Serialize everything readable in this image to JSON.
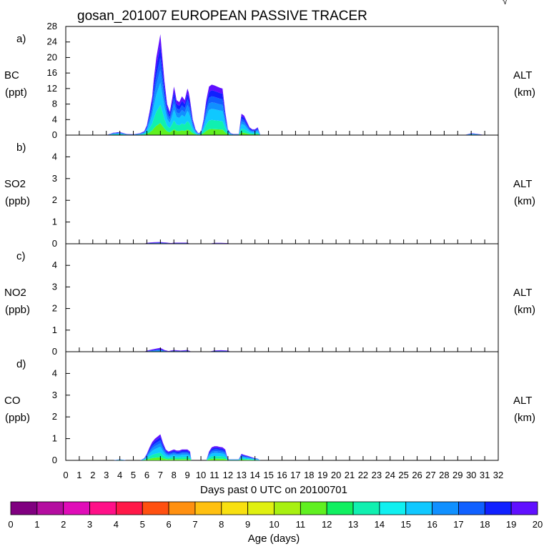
{
  "chart_data": {
    "type": "area",
    "title": "gosan_201007 EUROPEAN PASSIVE TRACER",
    "corner_mark": "√",
    "xlabel": "Days past 0 UTC on 20100701",
    "x_ticks": [
      "0",
      "1",
      "2",
      "3",
      "4",
      "5",
      "6",
      "7",
      "8",
      "9",
      "10",
      "11",
      "12",
      "13",
      "14",
      "15",
      "16",
      "17",
      "18",
      "19",
      "20",
      "21",
      "22",
      "23",
      "24",
      "25",
      "26",
      "27",
      "28",
      "29",
      "30",
      "31",
      "32"
    ],
    "xlim": [
      0,
      32
    ],
    "right_labels": {
      "top": "ALT",
      "bottom": "(km)"
    },
    "colorbar": {
      "label": "Age (days)",
      "ticks": [
        "0",
        "1",
        "2",
        "3",
        "4",
        "5",
        "6",
        "7",
        "8",
        "9",
        "10",
        "11",
        "12",
        "13",
        "14",
        "15",
        "16",
        "17",
        "18",
        "19",
        "20"
      ],
      "colors": [
        "#800080",
        "#b40da0",
        "#e00cb8",
        "#ff1088",
        "#ff1848",
        "#ff5010",
        "#ff9010",
        "#ffc010",
        "#f8e010",
        "#e0f010",
        "#a8f010",
        "#60f020",
        "#10f060",
        "#10f0b0",
        "#10f0f0",
        "#10c8ff",
        "#1090ff",
        "#1060ff",
        "#1020ff",
        "#6010ff"
      ]
    },
    "panels": [
      {
        "letter": "a)",
        "species": "BC",
        "unit": "(ppt)",
        "ylim": [
          0,
          28
        ],
        "y_ticks": [
          0,
          4,
          8,
          12,
          16,
          20,
          24,
          28
        ],
        "x": [
          3.0,
          3.5,
          4.0,
          4.5,
          5.0,
          5.5,
          5.8,
          6.0,
          6.2,
          6.4,
          6.5,
          6.6,
          6.7,
          6.8,
          6.9,
          7.0,
          7.1,
          7.2,
          7.3,
          7.5,
          7.7,
          7.9,
          8.0,
          8.1,
          8.2,
          8.4,
          8.6,
          8.8,
          9.0,
          9.1,
          9.2,
          9.4,
          9.6,
          9.8,
          10.0,
          10.2,
          10.4,
          10.6,
          10.8,
          11.0,
          11.2,
          11.4,
          11.6,
          11.8,
          12.0,
          12.2,
          12.4,
          12.8,
          13.0,
          13.2,
          13.4,
          13.6,
          13.8,
          14.0,
          14.2,
          14.4,
          29.5,
          30.0,
          30.5,
          31.0
        ],
        "values": [
          0,
          0.6,
          0.8,
          0.3,
          0.2,
          0.5,
          1.0,
          2.5,
          6.0,
          10.0,
          14.0,
          17.0,
          20.0,
          22.0,
          24.0,
          26.0,
          22.0,
          18.0,
          14.0,
          8.0,
          6.0,
          10.0,
          12.5,
          11.0,
          9.0,
          8.5,
          10.0,
          9.0,
          12.0,
          11.0,
          9.0,
          4.0,
          1.5,
          0.5,
          0.8,
          4.0,
          9.0,
          12.5,
          13.0,
          12.8,
          12.5,
          12.2,
          12.0,
          6.0,
          1.5,
          0.5,
          0.3,
          0.3,
          5.5,
          5.0,
          3.5,
          2.0,
          1.5,
          1.5,
          2.0,
          0,
          0,
          0.5,
          0.3,
          0
        ],
        "composition_by_age": [
          {
            "age_days": 11,
            "fraction": 0.12
          },
          {
            "age_days": 13,
            "fraction": 0.18
          },
          {
            "age_days": 15,
            "fraction": 0.22
          },
          {
            "age_days": 16,
            "fraction": 0.13
          },
          {
            "age_days": 17,
            "fraction": 0.12
          },
          {
            "age_days": 18,
            "fraction": 0.12
          },
          {
            "age_days": 19,
            "fraction": 0.11
          }
        ]
      },
      {
        "letter": "b)",
        "species": "SO2",
        "unit": "(ppb)",
        "ylim": [
          0,
          5
        ],
        "y_ticks": [
          0,
          1,
          2,
          3,
          4
        ],
        "x": [
          5.8,
          6.0,
          6.5,
          7.0,
          7.5,
          7.8,
          8.0,
          8.5,
          9.0,
          9.2,
          10.6,
          11.0,
          11.5,
          12.0,
          12.2
        ],
        "values": [
          0,
          0.04,
          0.07,
          0.08,
          0.05,
          0.03,
          0.05,
          0.05,
          0.05,
          0,
          0,
          0.04,
          0.04,
          0.03,
          0
        ],
        "composition_by_age": [
          {
            "age_days": 15,
            "fraction": 0.3
          },
          {
            "age_days": 17,
            "fraction": 0.3
          },
          {
            "age_days": 19,
            "fraction": 0.4
          }
        ]
      },
      {
        "letter": "c)",
        "species": "NO2",
        "unit": "(ppb)",
        "ylim": [
          0,
          5
        ],
        "y_ticks": [
          0,
          1,
          2,
          3,
          4
        ],
        "x": [
          5.8,
          6.0,
          6.5,
          7.0,
          7.3,
          7.6,
          8.0,
          8.5,
          9.0,
          9.3,
          10.6,
          11.0,
          11.5,
          12.0,
          12.2
        ],
        "values": [
          0,
          0.05,
          0.12,
          0.18,
          0.08,
          0.03,
          0.08,
          0.05,
          0.08,
          0,
          0,
          0.06,
          0.07,
          0.05,
          0
        ],
        "composition_by_age": [
          {
            "age_days": 15,
            "fraction": 0.3
          },
          {
            "age_days": 17,
            "fraction": 0.3
          },
          {
            "age_days": 19,
            "fraction": 0.4
          }
        ]
      },
      {
        "letter": "d)",
        "species": "CO",
        "unit": "(ppb)",
        "ylim": [
          0,
          5
        ],
        "y_ticks": [
          0,
          1,
          2,
          3,
          4
        ],
        "x": [
          3.5,
          4.0,
          4.5,
          5.5,
          5.8,
          6.0,
          6.2,
          6.4,
          6.6,
          6.8,
          7.0,
          7.2,
          7.4,
          7.6,
          7.8,
          8.0,
          8.2,
          8.4,
          8.6,
          8.8,
          9.0,
          9.2,
          9.3,
          10.4,
          10.6,
          10.8,
          11.0,
          11.2,
          11.4,
          11.6,
          11.8,
          12.0,
          12.8,
          13.0,
          13.2,
          13.5,
          14.0,
          14.2,
          14.4
        ],
        "values": [
          0,
          0.05,
          0,
          0,
          0.1,
          0.3,
          0.6,
          0.85,
          1.0,
          1.1,
          1.2,
          0.8,
          0.5,
          0.4,
          0.45,
          0.5,
          0.45,
          0.45,
          0.5,
          0.5,
          0.5,
          0.4,
          0,
          0,
          0.4,
          0.6,
          0.65,
          0.65,
          0.62,
          0.6,
          0.5,
          0.05,
          0.05,
          0.3,
          0.25,
          0.2,
          0.1,
          0.08,
          0
        ],
        "composition_by_age": [
          {
            "age_days": 11,
            "fraction": 0.12
          },
          {
            "age_days": 13,
            "fraction": 0.18
          },
          {
            "age_days": 15,
            "fraction": 0.22
          },
          {
            "age_days": 16,
            "fraction": 0.13
          },
          {
            "age_days": 17,
            "fraction": 0.12
          },
          {
            "age_days": 18,
            "fraction": 0.12
          },
          {
            "age_days": 19,
            "fraction": 0.11
          }
        ]
      }
    ]
  }
}
